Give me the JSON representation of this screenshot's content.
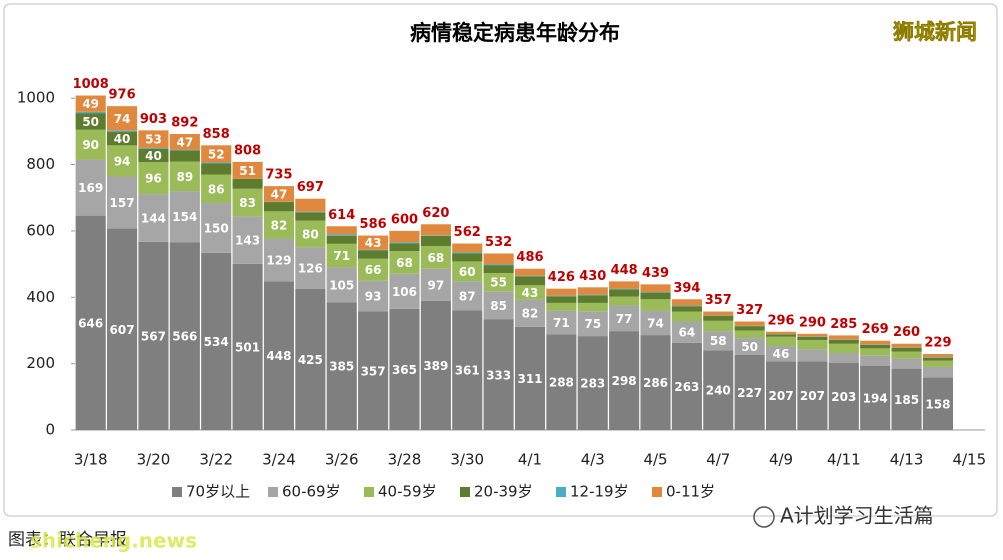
{
  "chart_data": {
    "type": "stacked_bar",
    "title": "病情稳定病患年龄分布",
    "categories": [
      "3/18",
      null,
      "3/20",
      null,
      "3/22",
      null,
      "3/24",
      null,
      "3/26",
      null,
      "3/28",
      null,
      "3/30",
      null,
      "4/1",
      null,
      "4/3",
      null,
      "4/5",
      null,
      "4/7",
      null,
      "4/9",
      null,
      "4/11",
      null,
      "4/13",
      null,
      "4/15"
    ],
    "series": [
      {
        "name": "70岁以上",
        "color": "#7f7f7f",
        "values": [
          646,
          607,
          567,
          566,
          534,
          501,
          448,
          425,
          385,
          357,
          365,
          389,
          361,
          333,
          311,
          288,
          283,
          298,
          286,
          263,
          240,
          227,
          207,
          207,
          203,
          194,
          185,
          158,
          null
        ]
      },
      {
        "name": "60-69岁",
        "color": "#a6a6a6",
        "values": [
          169,
          157,
          144,
          154,
          150,
          143,
          129,
          126,
          105,
          93,
          106,
          97,
          87,
          85,
          82,
          71,
          75,
          77,
          74,
          64,
          58,
          50,
          46,
          36,
          29,
          30,
          30,
          32,
          null
        ]
      },
      {
        "name": "40-59岁",
        "color": "#9bbb59",
        "values": [
          90,
          94,
          96,
          89,
          86,
          83,
          82,
          80,
          71,
          66,
          68,
          68,
          60,
          55,
          43,
          24,
          25,
          27,
          34,
          30,
          31,
          23,
          28,
          28,
          28,
          22,
          21,
          19,
          null
        ]
      },
      {
        "name": "20-39岁",
        "color": "#5e7c2e",
        "values": [
          50,
          40,
          40,
          34,
          33,
          30,
          28,
          25,
          24,
          25,
          24,
          31,
          25,
          24,
          27,
          20,
          23,
          22,
          20,
          16,
          15,
          13,
          7,
          10,
          12,
          11,
          12,
          8,
          null
        ]
      },
      {
        "name": "12-19岁",
        "color": "#4bacc6",
        "values": [
          4,
          4,
          3,
          2,
          3,
          0,
          1,
          2,
          4,
          2,
          3,
          2,
          3,
          3,
          2,
          2,
          2,
          2,
          2,
          2,
          1,
          1,
          1,
          1,
          1,
          1,
          1,
          2,
          null
        ]
      },
      {
        "name": "0-11岁",
        "color": "#e0883e",
        "values": [
          49,
          74,
          53,
          47,
          52,
          51,
          47,
          39,
          25,
          43,
          34,
          33,
          26,
          32,
          21,
          21,
          22,
          22,
          23,
          19,
          12,
          13,
          7,
          8,
          12,
          11,
          11,
          10,
          null
        ]
      }
    ],
    "totals": [
      1008,
      976,
      903,
      892,
      858,
      808,
      735,
      697,
      614,
      586,
      600,
      620,
      562,
      532,
      486,
      426,
      430,
      448,
      439,
      394,
      357,
      327,
      296,
      290,
      285,
      269,
      260,
      229,
      null
    ],
    "ylim": [
      0,
      1100
    ],
    "yticks": [
      0,
      200,
      400,
      600,
      800,
      1000
    ],
    "grid": false,
    "legend": "bottom"
  },
  "watermark": "狮城新闻",
  "source": "图表：联合早报",
  "site": "shicheng.news",
  "brand": "A计划学习生活篇"
}
